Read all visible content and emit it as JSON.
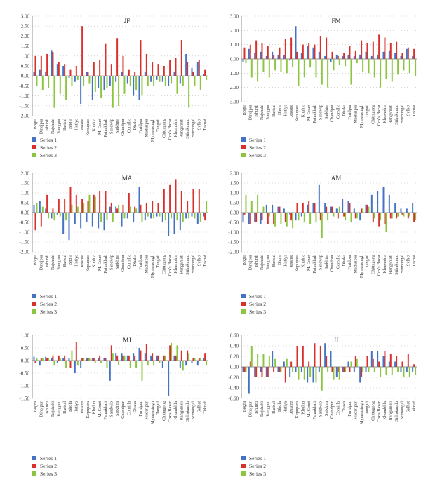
{
  "series_names": [
    "Series 1",
    "Series 2",
    "Series 3"
  ],
  "colors": {
    "series_1": "#4472c4",
    "series_2": "#d9302c",
    "series_3": "#8cc63f",
    "grid": "#bbbbbb",
    "axis": "#777777"
  },
  "stations": [
    "Bogra",
    "Dinajpur",
    "Ishurdi",
    "Rajshahi",
    "Rangpur",
    "Barisal",
    "Bhola",
    "Hatiya",
    "Jessore",
    "Kepupara",
    "Khulna",
    "M. Court",
    "Patuakhali",
    "Sandwip",
    "Satkhira",
    "Chandpur",
    "Comilla",
    "Dhaka",
    "Faridpur",
    "Madaripur",
    "Mymensingh",
    "Tangail",
    "Chittagong",
    "Cox's Bazar",
    "Khumbhla",
    "Rangamati",
    "Sithakundu",
    "Srimongal",
    "Sylhet",
    "Teknaf"
  ],
  "chart_data": [
    {
      "type": "bar",
      "title": "JF",
      "ylim": [
        -2,
        3
      ],
      "yticks": [
        "3.00",
        "2.50",
        "2.00",
        "1.50",
        "1.00",
        "0.50",
        "0.00",
        "-0.50",
        "-1.00",
        "-1.50",
        "-2.00"
      ],
      "grid": true,
      "legend_position": "below",
      "series": [
        {
          "name": "Series 1",
          "values": [
            0.2,
            0.3,
            0.2,
            1.3,
            0.6,
            0.5,
            -0.1,
            -0.3,
            -1.4,
            0.2,
            -1.2,
            -0.6,
            -0.7,
            -0.5,
            -0.3,
            0.2,
            -0.4,
            -1.0,
            -1.2,
            0.2,
            -0.3,
            -0.2,
            -0.3,
            -0.5,
            0.2,
            -0.4,
            1.1,
            0.4,
            0.7,
            0.1
          ]
        },
        {
          "name": "Series 2",
          "values": [
            1.0,
            1.0,
            1.1,
            1.2,
            0.7,
            0.6,
            0.3,
            0.5,
            2.5,
            0.2,
            0.7,
            0.8,
            1.6,
            0.6,
            1.9,
            1.0,
            0.3,
            0.2,
            1.8,
            1.1,
            0.7,
            0.6,
            0.5,
            0.8,
            0.9,
            1.8,
            0.7,
            0.2,
            0.8,
            0.3
          ]
        },
        {
          "name": "Series 3",
          "values": [
            -0.5,
            -0.7,
            -0.6,
            -1.6,
            -0.9,
            -1.2,
            -0.5,
            -0.2,
            -0.5,
            -0.4,
            -0.8,
            -1.1,
            -0.6,
            -1.6,
            -1.5,
            -0.9,
            -0.5,
            -0.7,
            -1.0,
            -0.5,
            -0.5,
            -0.3,
            -0.5,
            -0.4,
            -0.9,
            -0.5,
            -1.6,
            -0.5,
            -0.7,
            -0.2
          ]
        }
      ]
    },
    {
      "type": "bar",
      "title": "FM",
      "ylim": [
        -3,
        3
      ],
      "yticks": [
        "3.00",
        "2.00",
        "1.00",
        "0.00",
        "-1.00",
        "-2.00",
        "-3.00"
      ],
      "grid": true,
      "legend_position": "below",
      "series": [
        {
          "name": "Series 1",
          "values": [
            -0.2,
            0.7,
            0.4,
            0.5,
            0.2,
            0.5,
            0.3,
            0.3,
            -0.1,
            2.3,
            0.4,
            0.9,
            0.8,
            0.5,
            0.2,
            -0.2,
            0.3,
            0.2,
            0.3,
            0.2,
            0.3,
            0.5,
            0.2,
            0.3,
            0.5,
            0.6,
            0.4,
            0.2,
            0.7,
            0.2
          ]
        },
        {
          "name": "Series 2",
          "values": [
            0.8,
            1.0,
            1.3,
            1.1,
            0.9,
            0.3,
            0.8,
            1.4,
            1.5,
            0.5,
            1.0,
            1.1,
            1.0,
            1.6,
            1.5,
            0.5,
            0.2,
            0.4,
            0.9,
            0.6,
            1.3,
            1.1,
            1.2,
            1.7,
            1.5,
            1.1,
            1.2,
            0.4,
            0.8,
            0.7
          ]
        },
        {
          "name": "Series 3",
          "values": [
            -0.3,
            -1.3,
            -1.6,
            -0.9,
            -1.3,
            -0.8,
            -0.9,
            -1.0,
            -0.6,
            -1.9,
            -1.3,
            -0.6,
            -1.3,
            -1.8,
            -2.0,
            -0.8,
            -0.4,
            -0.5,
            -1.8,
            -0.3,
            -0.9,
            -1.0,
            -1.3,
            -2.0,
            -1.4,
            -1.6,
            -1.1,
            -0.8,
            -1.0,
            -1.2
          ]
        }
      ]
    },
    {
      "type": "bar",
      "title": "MA",
      "ylim": [
        -2,
        2
      ],
      "yticks": [
        "2.00",
        "1.50",
        "1.00",
        "0.50",
        "0.00",
        "-0.50",
        "-1.00",
        "-1.50",
        "-2.00"
      ],
      "grid": true,
      "legend_position": "below",
      "series": [
        {
          "name": "Series 1",
          "values": [
            0.4,
            0.6,
            0.2,
            -0.3,
            -0.1,
            -1.1,
            -1.4,
            -0.6,
            -0.8,
            -0.5,
            -0.7,
            -0.8,
            -0.9,
            0.3,
            0.3,
            -0.7,
            -0.3,
            -0.5,
            1.3,
            -0.4,
            -0.3,
            -0.2,
            -0.5,
            -1.2,
            -1.1,
            -0.9,
            -0.3,
            -0.2,
            -0.6,
            -0.2
          ]
        },
        {
          "name": "Series 2",
          "values": [
            -0.9,
            -0.7,
            0.9,
            0.2,
            0.7,
            0.7,
            1.3,
            0.9,
            0.7,
            0.6,
            0.9,
            1.1,
            1.1,
            0.5,
            0.2,
            0.4,
            1.0,
            0.3,
            0.4,
            0.5,
            0.6,
            0.5,
            1.2,
            1.4,
            1.7,
            1.1,
            0.6,
            1.2,
            1.2,
            -0.4
          ]
        },
        {
          "name": "Series 3",
          "values": [
            0.5,
            0.3,
            -0.3,
            -0.4,
            -0.2,
            -0.4,
            0.4,
            0.3,
            0.5,
            0.9,
            0.8,
            -0.5,
            -0.4,
            -0.5,
            0.4,
            -0.3,
            0.3,
            0.2,
            -0.5,
            -0.2,
            -0.3,
            -0.2,
            -0.4,
            -0.3,
            -0.4,
            -0.5,
            -0.3,
            -0.3,
            -0.5,
            0.6
          ]
        }
      ]
    },
    {
      "type": "bar",
      "title": "AM",
      "ylim": [
        -2,
        2
      ],
      "yticks": [
        "2.00",
        "1.50",
        "1.00",
        "0.50",
        "0.00",
        "-0.50",
        "-1.00",
        "-1.50",
        "-2.00"
      ],
      "grid": true,
      "legend_position": "below",
      "series": [
        {
          "name": "Series 1",
          "values": [
            -0.5,
            -0.6,
            -0.5,
            -0.6,
            0.4,
            0.4,
            0.3,
            0.2,
            -0.1,
            -0.4,
            -0.2,
            0.4,
            0.5,
            1.4,
            0.5,
            0.3,
            0.2,
            0.7,
            0.6,
            0.2,
            -0.4,
            0.4,
            0.9,
            1.1,
            1.3,
            0.9,
            0.5,
            0.2,
            0.2,
            0.5
          ]
        },
        {
          "name": "Series 2",
          "values": [
            -0.1,
            -0.6,
            -0.5,
            -0.4,
            -0.6,
            -0.6,
            0.3,
            -0.5,
            -0.4,
            0.5,
            0.5,
            0.6,
            0.5,
            -0.4,
            0.3,
            0.3,
            -0.3,
            -0.2,
            0.5,
            -0.3,
            0.2,
            0.4,
            -0.5,
            -0.7,
            -0.6,
            -0.3,
            -0.3,
            -0.1,
            -0.3,
            -0.5
          ]
        },
        {
          "name": "Series 3",
          "values": [
            0.9,
            0.6,
            0.9,
            0.3,
            -0.2,
            -0.7,
            -0.6,
            -0.7,
            -0.8,
            -0.4,
            -0.5,
            -0.6,
            -0.5,
            -1.3,
            -0.4,
            -0.2,
            0.3,
            -0.4,
            -0.5,
            -0.3,
            0.2,
            0.3,
            -0.3,
            -0.4,
            -1.0,
            -0.3,
            -0.2,
            -0.2,
            -0.2,
            -0.4
          ]
        }
      ]
    },
    {
      "type": "bar",
      "title": "MJ",
      "ylim": [
        -1.5,
        1
      ],
      "yticks": [
        "1.00",
        "0.50",
        "0.00",
        "-0.50",
        "-1.00",
        "-1.50"
      ],
      "grid": true,
      "legend_position": "below",
      "series": [
        {
          "name": "Series 1",
          "values": [
            0.15,
            -0.2,
            0.15,
            0.1,
            -0.1,
            0.1,
            0.1,
            -0.5,
            -0.3,
            0.1,
            0.1,
            0.1,
            0.1,
            -0.8,
            0.3,
            0.3,
            0.2,
            0.3,
            0.5,
            0.3,
            0.2,
            0.2,
            -0.3,
            -1.4,
            0.2,
            -0.3,
            -0.2,
            -0.1,
            -0.2,
            0.1
          ]
        },
        {
          "name": "Series 2",
          "values": [
            -0.1,
            0.1,
            0.1,
            0.2,
            0.2,
            0.2,
            -0.3,
            0.75,
            0.1,
            0.1,
            0.1,
            0.2,
            0.1,
            0.6,
            0.2,
            0.2,
            0.2,
            0.2,
            0.4,
            0.65,
            0.3,
            0.2,
            0.2,
            0.6,
            0.2,
            0.4,
            0.4,
            0.1,
            0.1,
            0.3
          ]
        },
        {
          "name": "Series 3",
          "values": [
            0.1,
            0.1,
            0.1,
            -0.2,
            0.1,
            -0.3,
            0.4,
            -0.2,
            0.1,
            0.1,
            -0.1,
            -0.1,
            -0.3,
            0.3,
            -0.2,
            0.2,
            -0.3,
            -0.3,
            -0.8,
            -0.2,
            -0.2,
            -0.1,
            0.2,
            0.7,
            0.6,
            -0.4,
            0.3,
            0.1,
            0.1,
            -0.2
          ]
        }
      ]
    },
    {
      "type": "bar",
      "title": "JJ",
      "ylim": [
        -0.6,
        0.6
      ],
      "yticks": [
        "0.60",
        "0.40",
        "0.20",
        "0.00",
        "-0.20",
        "-0.40",
        "-0.60"
      ],
      "grid": true,
      "legend_position": "below",
      "series": [
        {
          "name": "Series 1",
          "values": [
            -0.1,
            -0.5,
            -0.2,
            -0.1,
            -0.2,
            0.3,
            -0.1,
            0.1,
            -0.2,
            -0.1,
            -0.1,
            -0.3,
            -0.3,
            -0.1,
            0.45,
            0.3,
            -0.2,
            -0.1,
            0.1,
            -0.1,
            -0.3,
            -0.1,
            0.3,
            0.3,
            0.2,
            0.1,
            0.1,
            -0.1,
            -0.1,
            -0.1
          ]
        },
        {
          "name": "Series 2",
          "values": [
            -0.1,
            0.1,
            -0.2,
            -0.2,
            -0.2,
            -0.1,
            -0.1,
            -0.3,
            0.1,
            0.4,
            0.4,
            0.1,
            0.45,
            0.4,
            0.2,
            -0.1,
            -0.1,
            -0.1,
            -0.1,
            0.2,
            -0.2,
            0.2,
            0.15,
            0.1,
            0.3,
            0.25,
            0.2,
            0.1,
            0.25,
            0.05
          ]
        },
        {
          "name": "Series 3",
          "values": [
            -0.1,
            0.4,
            0.25,
            0.25,
            0.2,
            0.15,
            -0.1,
            0.15,
            -0.1,
            -0.25,
            -0.25,
            -0.2,
            -0.3,
            -0.45,
            -0.1,
            -0.25,
            -0.25,
            -0.1,
            0.1,
            0.15,
            -0.1,
            -0.1,
            -0.1,
            -0.2,
            -0.15,
            -0.15,
            -0.1,
            -0.2,
            -0.2,
            -0.15
          ]
        }
      ]
    }
  ]
}
